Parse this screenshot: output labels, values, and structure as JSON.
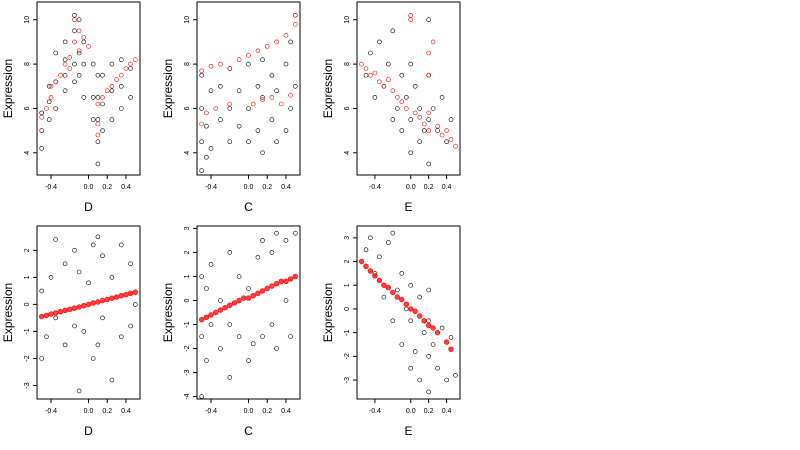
{
  "chart_data": [
    {
      "type": "scatter",
      "title": "",
      "xlabel": "D",
      "ylabel": "Expression",
      "xlim": [
        -0.55,
        0.55
      ],
      "ylim": [
        3.0,
        10.8
      ],
      "xticks": [
        "-0.4",
        "0.0",
        "0.2",
        "0.4"
      ],
      "xtick_values": [
        -0.4,
        0.0,
        0.2,
        0.4
      ],
      "yticks": [
        "4",
        "6",
        "8",
        "10"
      ],
      "ytick_values": [
        4,
        6,
        8,
        10
      ],
      "series": [
        {
          "color": "#000000",
          "marker": "open-circle",
          "x": [
            -0.5,
            -0.5,
            -0.5,
            -0.42,
            -0.42,
            -0.42,
            -0.35,
            -0.35,
            -0.35,
            -0.25,
            -0.25,
            -0.25,
            -0.25,
            -0.15,
            -0.15,
            -0.15,
            -0.15,
            -0.1,
            -0.1,
            -0.1,
            -0.05,
            -0.05,
            -0.05,
            0.05,
            0.05,
            0.05,
            0.1,
            0.1,
            0.1,
            0.1,
            0.1,
            0.15,
            0.15,
            0.15,
            0.25,
            0.25,
            0.25,
            0.35,
            0.35,
            0.35,
            0.45,
            0.45
          ],
          "y": [
            4.2,
            5.0,
            5.8,
            5.5,
            6.3,
            7.0,
            6.0,
            7.2,
            8.5,
            7.5,
            8.2,
            9.0,
            6.8,
            8.0,
            9.5,
            10.2,
            7.2,
            7.5,
            8.5,
            10.0,
            6.5,
            8.0,
            9.0,
            5.5,
            6.5,
            8.0,
            3.5,
            4.5,
            5.5,
            6.5,
            7.5,
            5.0,
            6.2,
            7.5,
            5.5,
            6.8,
            8.0,
            6.0,
            7.0,
            8.2,
            6.5,
            7.8
          ]
        },
        {
          "color": "#ff0000",
          "marker": "open-circle",
          "x": [
            -0.5,
            -0.5,
            -0.45,
            -0.4,
            -0.4,
            -0.35,
            -0.3,
            -0.25,
            -0.2,
            -0.2,
            -0.15,
            -0.15,
            -0.1,
            -0.1,
            -0.05,
            0.0,
            0.1,
            0.1,
            0.1,
            0.15,
            0.2,
            0.25,
            0.3,
            0.35,
            0.4,
            0.45,
            0.5
          ],
          "y": [
            5.0,
            5.6,
            6.0,
            6.5,
            7.0,
            7.2,
            7.5,
            8.0,
            8.3,
            7.8,
            9.0,
            10.0,
            8.6,
            9.5,
            9.2,
            8.8,
            4.8,
            5.3,
            6.2,
            6.5,
            6.8,
            7.0,
            7.3,
            7.5,
            7.8,
            8.0,
            8.2
          ]
        }
      ]
    },
    {
      "type": "scatter",
      "title": "",
      "xlabel": "C",
      "ylabel": "Expression",
      "xlim": [
        -0.55,
        0.55
      ],
      "ylim": [
        3.0,
        10.8
      ],
      "xticks": [
        "-0.4",
        "0.0",
        "0.2",
        "0.4"
      ],
      "xtick_values": [
        -0.4,
        0.0,
        0.2,
        0.4
      ],
      "yticks": [
        "4",
        "6",
        "8",
        "10"
      ],
      "ytick_values": [
        4,
        6,
        8,
        10
      ],
      "series": [
        {
          "color": "#000000",
          "marker": "open-circle",
          "x": [
            -0.5,
            -0.5,
            -0.5,
            -0.5,
            -0.45,
            -0.45,
            -0.4,
            -0.4,
            -0.3,
            -0.3,
            -0.2,
            -0.2,
            -0.2,
            -0.1,
            -0.1,
            0.0,
            0.0,
            0.0,
            0.1,
            0.1,
            0.15,
            0.15,
            0.15,
            0.25,
            0.25,
            0.3,
            0.3,
            0.4,
            0.4,
            0.45,
            0.45,
            0.5,
            0.5
          ],
          "y": [
            3.2,
            4.5,
            6.0,
            7.5,
            3.8,
            5.2,
            4.2,
            6.8,
            5.5,
            7.0,
            4.5,
            6.0,
            7.8,
            5.2,
            6.8,
            4.5,
            6.0,
            8.0,
            5.0,
            7.0,
            4.0,
            6.5,
            8.2,
            5.5,
            7.5,
            4.5,
            6.8,
            5.0,
            8.0,
            6.0,
            9.0,
            7.0,
            10.2
          ]
        },
        {
          "color": "#ff0000",
          "marker": "open-circle",
          "x": [
            -0.5,
            -0.5,
            -0.45,
            -0.4,
            -0.35,
            -0.3,
            -0.2,
            -0.2,
            -0.1,
            0.0,
            0.05,
            0.1,
            0.15,
            0.2,
            0.25,
            0.3,
            0.35,
            0.4,
            0.45,
            0.5,
            0.5
          ],
          "y": [
            5.3,
            7.7,
            5.8,
            7.9,
            6.0,
            8.0,
            6.2,
            7.8,
            8.2,
            8.4,
            6.2,
            8.6,
            6.4,
            8.8,
            6.5,
            9.0,
            6.2,
            9.3,
            6.6,
            9.8,
            10.2
          ]
        }
      ]
    },
    {
      "type": "scatter",
      "title": "",
      "xlabel": "E",
      "ylabel": "Expression",
      "xlim": [
        -0.6,
        0.55
      ],
      "ylim": [
        3.0,
        10.8
      ],
      "xticks": [
        "-0.4",
        "0.0",
        "0.2",
        "0.4"
      ],
      "xtick_values": [
        -0.4,
        0.0,
        0.2,
        0.4
      ],
      "yticks": [
        "4",
        "6",
        "8",
        "10"
      ],
      "ytick_values": [
        4,
        6,
        8,
        10
      ],
      "series": [
        {
          "color": "#000000",
          "marker": "open-circle",
          "x": [
            -0.5,
            -0.45,
            -0.4,
            -0.35,
            -0.3,
            -0.25,
            -0.2,
            -0.2,
            -0.15,
            -0.1,
            -0.1,
            -0.05,
            0.0,
            0.0,
            0.0,
            0.05,
            0.1,
            0.1,
            0.15,
            0.2,
            0.2,
            0.2,
            0.2,
            0.25,
            0.3,
            0.35,
            0.4,
            0.45
          ],
          "y": [
            7.5,
            8.5,
            6.5,
            9.0,
            7.0,
            8.0,
            5.5,
            9.5,
            6.0,
            7.5,
            5.0,
            6.5,
            8.0,
            5.5,
            4.0,
            7.0,
            6.0,
            4.5,
            5.0,
            3.5,
            5.5,
            7.5,
            10.0,
            6.0,
            5.0,
            6.5,
            4.5,
            5.5
          ]
        },
        {
          "color": "#ff0000",
          "marker": "open-circle",
          "x": [
            -0.55,
            -0.5,
            -0.45,
            -0.4,
            -0.35,
            -0.3,
            -0.25,
            -0.2,
            -0.15,
            -0.1,
            -0.05,
            0.0,
            0.0,
            0.05,
            0.1,
            0.15,
            0.2,
            0.2,
            0.2,
            0.2,
            0.25,
            0.3,
            0.35,
            0.4,
            0.45,
            0.5
          ],
          "y": [
            8.0,
            7.8,
            7.5,
            7.6,
            7.2,
            7.0,
            7.3,
            6.8,
            6.5,
            6.3,
            6.0,
            10.2,
            10.0,
            5.8,
            5.6,
            5.3,
            5.0,
            5.8,
            7.5,
            8.5,
            9.0,
            5.2,
            4.8,
            5.0,
            4.6,
            4.3
          ]
        }
      ]
    },
    {
      "type": "scatter",
      "title": "",
      "xlabel": "D",
      "ylabel": "Expression",
      "xlim": [
        -0.55,
        0.55
      ],
      "ylim": [
        -3.5,
        2.9
      ],
      "xticks": [
        "-0.4",
        "0.0",
        "0.2",
        "0.4"
      ],
      "xtick_values": [
        -0.4,
        0.0,
        0.2,
        0.4
      ],
      "yticks": [
        "-3",
        "-2",
        "-1",
        "0",
        "1",
        "2"
      ],
      "ytick_values": [
        -3,
        -2,
        -1,
        0,
        1,
        2
      ],
      "series": [
        {
          "color": "#000000",
          "marker": "open-circle",
          "x": [
            -0.5,
            -0.5,
            -0.45,
            -0.4,
            -0.35,
            -0.35,
            -0.25,
            -0.25,
            -0.15,
            -0.15,
            -0.1,
            -0.1,
            -0.05,
            0.0,
            0.05,
            0.05,
            0.1,
            0.1,
            0.15,
            0.15,
            0.25,
            0.25,
            0.35,
            0.35,
            0.45,
            0.45,
            0.5
          ],
          "y": [
            -2.0,
            0.5,
            -1.2,
            1.0,
            -0.5,
            2.4,
            -1.5,
            1.5,
            -0.8,
            2.0,
            -3.2,
            1.2,
            -1.0,
            0.8,
            -2.0,
            2.2,
            -1.5,
            2.5,
            -0.5,
            1.8,
            -2.8,
            1.0,
            -1.2,
            2.2,
            -0.8,
            1.5,
            0.0
          ]
        },
        {
          "color": "#ff0000",
          "marker": "filled-circle",
          "x": [
            -0.5,
            -0.45,
            -0.4,
            -0.35,
            -0.3,
            -0.25,
            -0.2,
            -0.15,
            -0.1,
            -0.05,
            0.0,
            0.05,
            0.1,
            0.15,
            0.2,
            0.25,
            0.3,
            0.35,
            0.4,
            0.45,
            0.5
          ],
          "y": [
            -0.45,
            -0.41,
            -0.36,
            -0.32,
            -0.27,
            -0.22,
            -0.18,
            -0.14,
            -0.1,
            -0.05,
            0.0,
            0.05,
            0.09,
            0.14,
            0.18,
            0.23,
            0.27,
            0.32,
            0.36,
            0.41,
            0.45
          ]
        }
      ]
    },
    {
      "type": "scatter",
      "title": "",
      "xlabel": "C",
      "ylabel": "Expression",
      "xlim": [
        -0.55,
        0.55
      ],
      "ylim": [
        -4.1,
        3.1
      ],
      "xticks": [
        "-0.4",
        "0.0",
        "0.2",
        "0.4"
      ],
      "xtick_values": [
        -0.4,
        0.0,
        0.2,
        0.4
      ],
      "yticks": [
        "-4",
        "-3",
        "-2",
        "-1",
        "0",
        "1",
        "2",
        "3"
      ],
      "ytick_values": [
        -4,
        -3,
        -2,
        -1,
        0,
        1,
        2,
        3
      ],
      "series": [
        {
          "color": "#000000",
          "marker": "open-circle",
          "x": [
            -0.5,
            -0.5,
            -0.5,
            -0.45,
            -0.45,
            -0.4,
            -0.4,
            -0.3,
            -0.3,
            -0.2,
            -0.2,
            -0.2,
            -0.1,
            -0.1,
            0.0,
            0.0,
            0.05,
            0.1,
            0.15,
            0.15,
            0.25,
            0.25,
            0.3,
            0.3,
            0.4,
            0.4,
            0.45,
            0.5
          ],
          "y": [
            -4.0,
            -1.5,
            1.0,
            -2.5,
            0.5,
            -1.0,
            1.5,
            -2.0,
            0.0,
            -3.2,
            -1.0,
            2.0,
            -1.5,
            1.0,
            -2.5,
            0.5,
            -1.8,
            1.8,
            -1.5,
            2.5,
            -1.0,
            2.0,
            -2.0,
            2.8,
            0.0,
            2.5,
            -1.5,
            2.8
          ]
        },
        {
          "color": "#ff0000",
          "marker": "filled-circle",
          "x": [
            -0.5,
            -0.45,
            -0.4,
            -0.35,
            -0.3,
            -0.25,
            -0.2,
            -0.15,
            -0.1,
            -0.05,
            0.0,
            0.05,
            0.1,
            0.15,
            0.2,
            0.25,
            0.3,
            0.35,
            0.4,
            0.45,
            0.5
          ],
          "y": [
            -0.8,
            -0.7,
            -0.6,
            -0.5,
            -0.4,
            -0.3,
            -0.2,
            -0.1,
            0.0,
            0.1,
            0.1,
            0.2,
            0.3,
            0.4,
            0.5,
            0.6,
            0.7,
            0.8,
            0.8,
            0.9,
            1.0
          ]
        }
      ]
    },
    {
      "type": "scatter",
      "title": "",
      "xlabel": "E",
      "ylabel": "Expression",
      "xlim": [
        -0.6,
        0.55
      ],
      "ylim": [
        -3.8,
        3.5
      ],
      "xticks": [
        "-0.4",
        "0.0",
        "0.2",
        "0.4"
      ],
      "xtick_values": [
        -0.4,
        0.0,
        0.2,
        0.4
      ],
      "yticks": [
        "-3",
        "-2",
        "-1",
        "0",
        "1",
        "2",
        "3"
      ],
      "ytick_values": [
        -3,
        -2,
        -1,
        0,
        1,
        2,
        3
      ],
      "series": [
        {
          "color": "#000000",
          "marker": "open-circle",
          "x": [
            -0.5,
            -0.45,
            -0.4,
            -0.35,
            -0.3,
            -0.25,
            -0.2,
            -0.2,
            -0.15,
            -0.1,
            -0.1,
            -0.05,
            0.0,
            0.0,
            0.0,
            0.05,
            0.1,
            0.1,
            0.15,
            0.2,
            0.2,
            0.2,
            0.2,
            0.25,
            0.3,
            0.35,
            0.4,
            0.45,
            0.5
          ],
          "y": [
            2.5,
            3.0,
            1.5,
            2.2,
            0.5,
            2.8,
            -0.5,
            3.2,
            0.8,
            -1.5,
            1.5,
            0.0,
            -2.5,
            -0.5,
            1.0,
            -1.8,
            -3.0,
            0.5,
            -1.0,
            -3.5,
            -2.0,
            -0.5,
            0.8,
            -1.5,
            -2.5,
            -0.8,
            -3.0,
            -1.2,
            -2.8
          ]
        },
        {
          "color": "#ff0000",
          "marker": "filled-circle",
          "x": [
            -0.55,
            -0.5,
            -0.45,
            -0.4,
            -0.35,
            -0.3,
            -0.25,
            -0.2,
            -0.15,
            -0.1,
            -0.05,
            0.0,
            0.05,
            0.1,
            0.15,
            0.2,
            0.25,
            0.3,
            0.4,
            0.45
          ],
          "y": [
            2.0,
            1.8,
            1.6,
            1.4,
            1.2,
            1.0,
            0.9,
            0.7,
            0.5,
            0.4,
            0.2,
            0.0,
            -0.1,
            -0.3,
            -0.5,
            -0.7,
            -0.8,
            -1.0,
            -1.4,
            -1.7
          ]
        }
      ]
    }
  ]
}
